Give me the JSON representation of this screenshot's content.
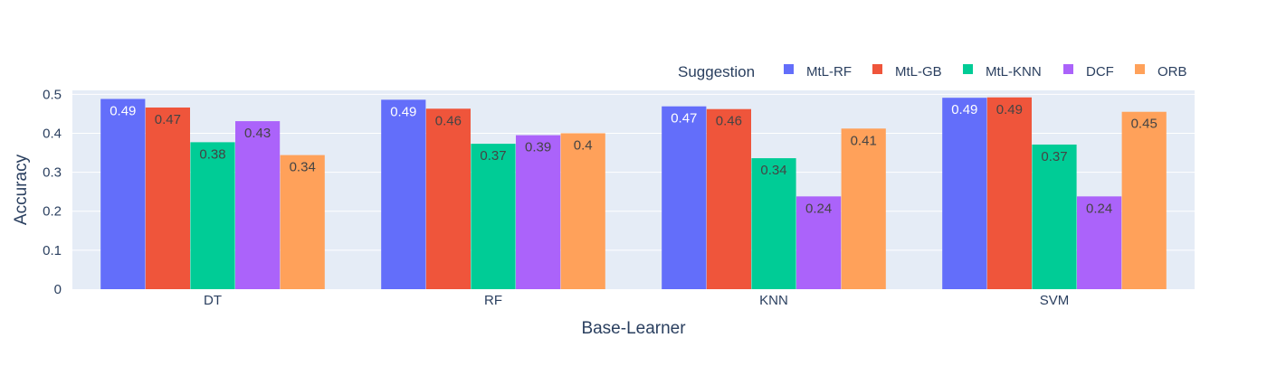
{
  "chart_data": {
    "type": "bar",
    "title": "",
    "xlabel": "Base-Learner",
    "ylabel": "Accuracy",
    "legend_title": "Suggestion",
    "legend_position": "top-right",
    "grid": true,
    "ylim": [
      0,
      0.51
    ],
    "yticks": [
      0,
      0.1,
      0.2,
      0.3,
      0.4,
      0.5
    ],
    "ytick_labels": [
      "0",
      "0.1",
      "0.2",
      "0.3",
      "0.4",
      "0.5"
    ],
    "categories": [
      "DT",
      "RF",
      "KNN",
      "SVM"
    ],
    "series": [
      {
        "name": "MtL-RF",
        "color": "#636efa",
        "label_color": "#ffffff",
        "values": [
          0.488,
          0.486,
          0.469,
          0.491
        ],
        "labels": [
          "0.49",
          "0.49",
          "0.47",
          "0.49"
        ]
      },
      {
        "name": "MtL-GB",
        "color": "#ef553b",
        "label_color": "#444444",
        "values": [
          0.466,
          0.463,
          0.462,
          0.492
        ],
        "labels": [
          "0.47",
          "0.46",
          "0.46",
          "0.49"
        ]
      },
      {
        "name": "MtL-KNN",
        "color": "#00cc96",
        "label_color": "#444444",
        "values": [
          0.377,
          0.373,
          0.336,
          0.371
        ],
        "labels": [
          "0.38",
          "0.37",
          "0.34",
          "0.37"
        ]
      },
      {
        "name": "DCF",
        "color": "#ab63fa",
        "label_color": "#444444",
        "values": [
          0.431,
          0.395,
          0.238,
          0.238
        ],
        "labels": [
          "0.43",
          "0.39",
          "0.24",
          "0.24"
        ]
      },
      {
        "name": "ORB",
        "color": "#ffa15a",
        "label_color": "#444444",
        "values": [
          0.344,
          0.4,
          0.412,
          0.455
        ],
        "labels": [
          "0.34",
          "0.4",
          "0.41",
          "0.45"
        ]
      }
    ],
    "plot_background": "#e5ecf6",
    "gridline_color": "#ffffff"
  }
}
